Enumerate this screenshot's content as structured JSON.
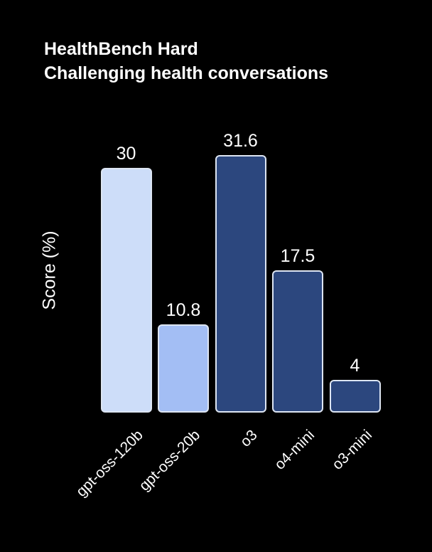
{
  "title": {
    "line1": "HealthBench Hard",
    "line2": "Challenging health conversations"
  },
  "chart_data": {
    "type": "bar",
    "categories": [
      "gpt-oss-120b",
      "gpt-oss-20b",
      "o3",
      "o4-mini",
      "o3-mini"
    ],
    "values": [
      30,
      10.8,
      31.6,
      17.5,
      4
    ],
    "value_labels": [
      "30",
      "10.8",
      "31.6",
      "17.5",
      "4"
    ],
    "title": "HealthBench Hard",
    "subtitle": "Challenging health conversations",
    "xlabel": "",
    "ylabel": "Score (%)",
    "ylim": [
      0,
      35
    ],
    "grid": false,
    "legend": false,
    "axes_visible": false,
    "background_color": "#000000",
    "text_color": "#ffffff",
    "bar_colors": [
      "#cdddf9",
      "#a3bef4",
      "#2c477e",
      "#2c477e",
      "#2c477e"
    ],
    "bar_edge_color": "#dde5f2"
  }
}
